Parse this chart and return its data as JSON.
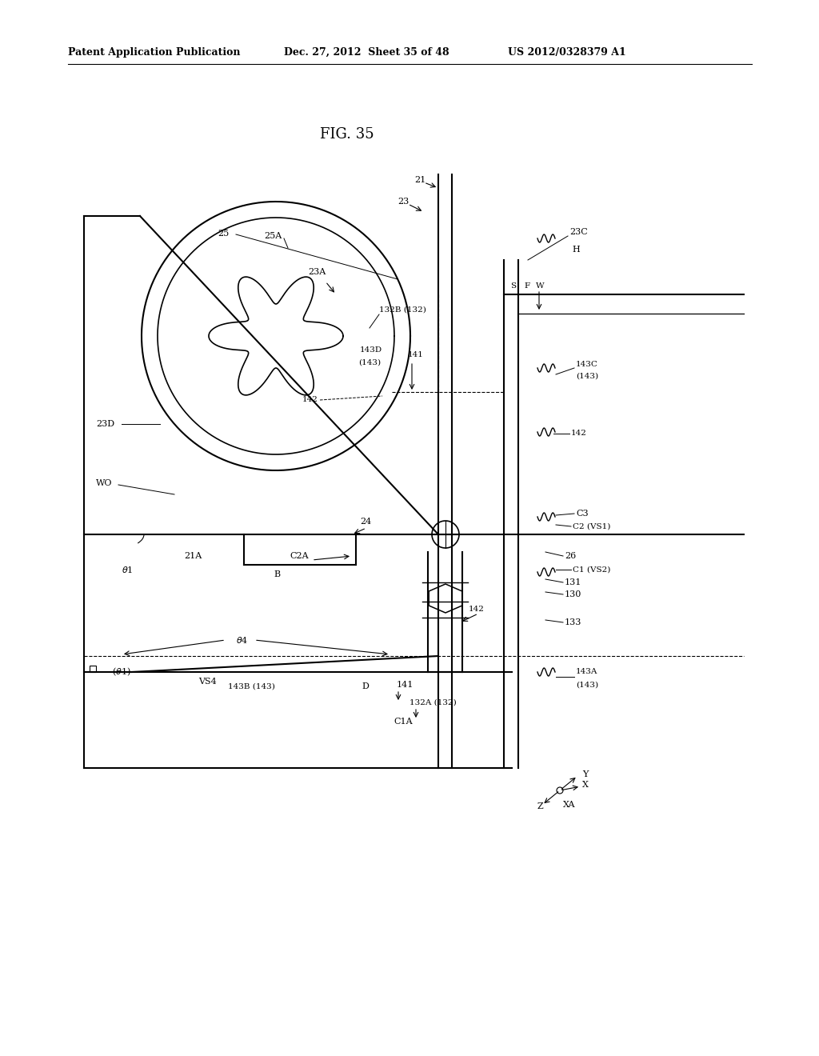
{
  "bg_color": "#ffffff",
  "line_color": "#000000",
  "header_text": "Patent Application Publication",
  "header_date": "Dec. 27, 2012  Sheet 35 of 48",
  "header_patent": "US 2012/0328379 A1",
  "fig_title": "FIG. 35"
}
